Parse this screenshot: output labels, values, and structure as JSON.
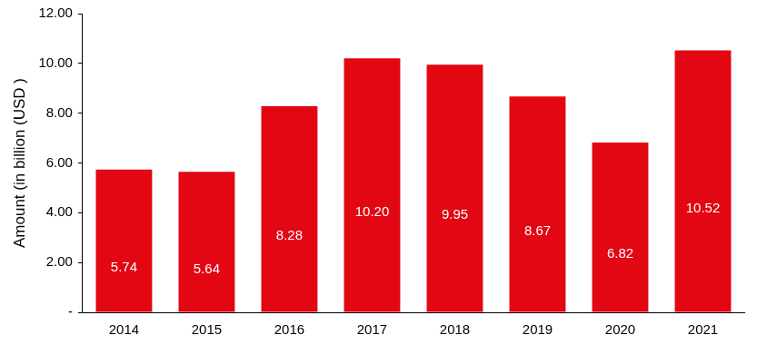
{
  "chart_data": {
    "type": "bar",
    "y_label": "Amount (in billion (USD )",
    "categories": [
      "2014",
      "2015",
      "2016",
      "2017",
      "2018",
      "2019",
      "2020",
      "2021"
    ],
    "values": [
      5.74,
      5.64,
      8.28,
      10.2,
      9.95,
      8.67,
      6.82,
      10.52
    ],
    "value_labels": [
      "5.74",
      "5.64",
      "8.28",
      "10.20",
      "9.95",
      "8.67",
      "6.82",
      "10.52"
    ],
    "color": "#e30613",
    "ylim": [
      0,
      12
    ],
    "yticks": [
      {
        "value": 0,
        "label": "-"
      },
      {
        "value": 2,
        "label": "2.00"
      },
      {
        "value": 4,
        "label": "4.00"
      },
      {
        "value": 6,
        "label": "6.00"
      },
      {
        "value": 8,
        "label": "8.00"
      },
      {
        "value": 10,
        "label": "10.00"
      },
      {
        "value": 12,
        "label": "12.00"
      }
    ],
    "grid": false,
    "data_labels": true
  }
}
